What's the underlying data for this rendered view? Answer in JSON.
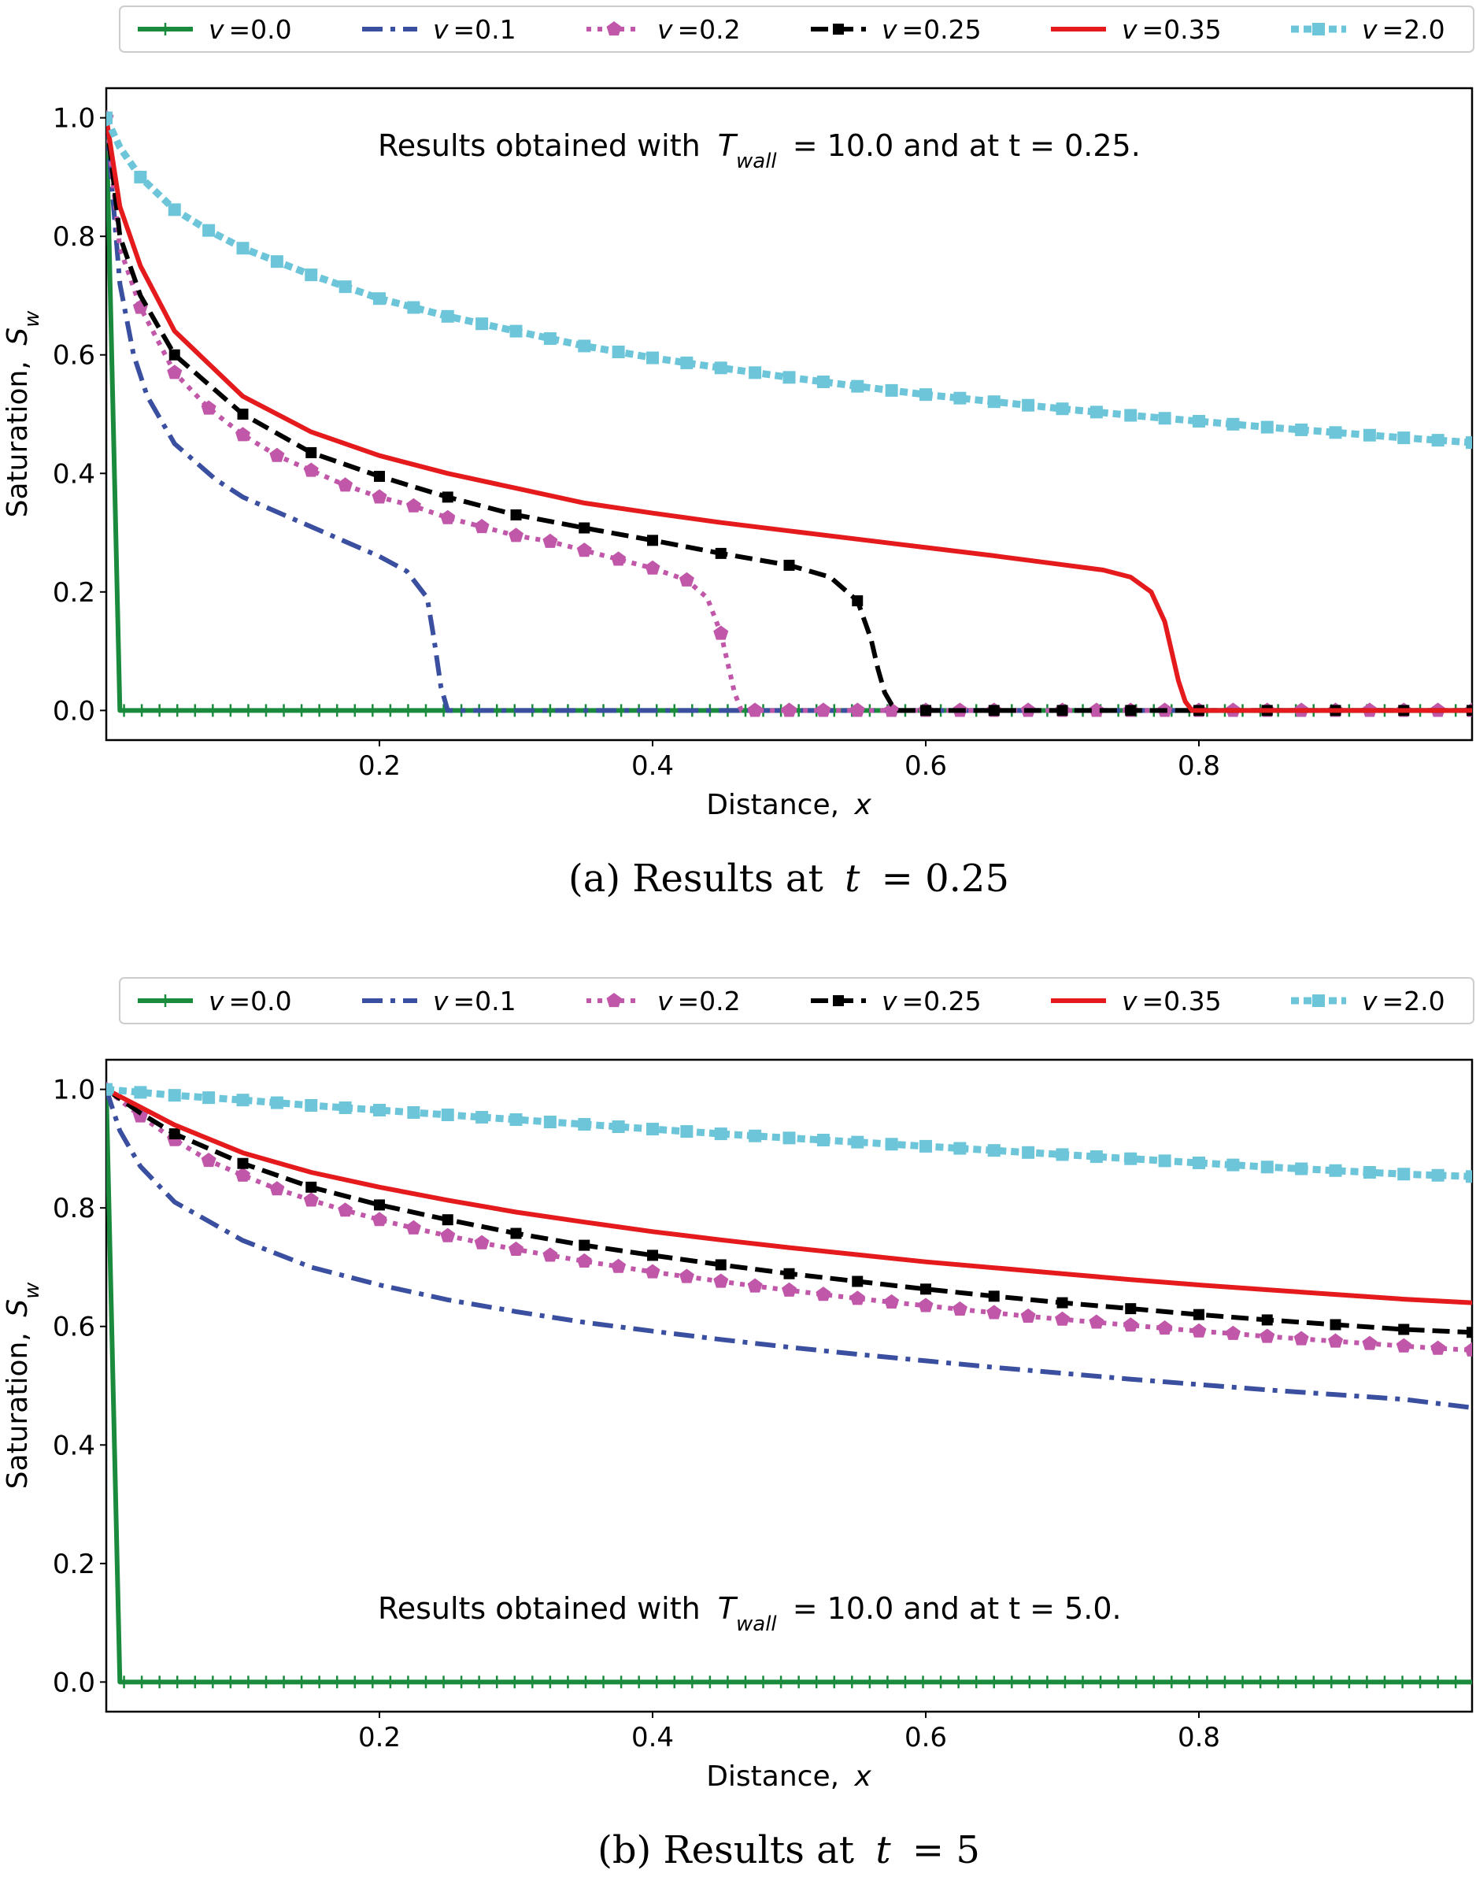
{
  "chart_data": [
    {
      "type": "line",
      "caption": "(a) Results at t = 0.25",
      "caption_prefix": "(a) Results at",
      "caption_var": "t",
      "caption_value": "= 0.25",
      "xlabel": "Distance, x",
      "xlabel_text": "Distance,",
      "xlabel_var": "x",
      "ylabel": "Saturation, Sw",
      "ylabel_text": "Saturation,",
      "ylabel_var": "S",
      "ylabel_sub": "w",
      "xlim": [
        0.0,
        1.0
      ],
      "ylim": [
        -0.05,
        1.05
      ],
      "xticks": [
        "0.2",
        "0.4",
        "0.6",
        "0.8"
      ],
      "yticks": [
        "0.0",
        "0.2",
        "0.4",
        "0.6",
        "0.8",
        "1.0"
      ],
      "annotation": "Results obtained with Twall = 10.0 and  at t = 0.25.",
      "annotation_parts": {
        "pre": "Results obtained with",
        "var": "T",
        "sub": "wall",
        "post": "= 10.0 and  at t = 0.25."
      },
      "legend_position": "top, outside, single row",
      "series": [
        {
          "name": "v = 0.0",
          "color": "#1a8a3c",
          "style": "solid-plus",
          "x": [
            0.0,
            0.01,
            0.011,
            1.0
          ],
          "y": [
            1.0,
            0.0,
            0.0,
            0.0
          ]
        },
        {
          "name": "v = 0.1",
          "color": "#3a4fa0",
          "style": "dashdot",
          "x": [
            0.0,
            0.01,
            0.02,
            0.03,
            0.05,
            0.08,
            0.1,
            0.13,
            0.15,
            0.18,
            0.2,
            0.22,
            0.235,
            0.24,
            0.245,
            0.25,
            1.0
          ],
          "y": [
            1.0,
            0.72,
            0.6,
            0.53,
            0.45,
            0.39,
            0.36,
            0.33,
            0.31,
            0.28,
            0.26,
            0.235,
            0.19,
            0.12,
            0.04,
            0.0,
            0.0
          ]
        },
        {
          "name": "v = 0.2",
          "color": "#c057a8",
          "style": "dotted-pentagon",
          "x": [
            0.0,
            0.01,
            0.025,
            0.05,
            0.075,
            0.1,
            0.125,
            0.15,
            0.175,
            0.2,
            0.225,
            0.25,
            0.275,
            0.3,
            0.325,
            0.35,
            0.375,
            0.4,
            0.425,
            0.44,
            0.45,
            0.455,
            0.46,
            0.465,
            1.0
          ],
          "y": [
            1.0,
            0.78,
            0.68,
            0.57,
            0.51,
            0.465,
            0.43,
            0.405,
            0.38,
            0.36,
            0.345,
            0.325,
            0.31,
            0.295,
            0.285,
            0.27,
            0.255,
            0.24,
            0.22,
            0.19,
            0.13,
            0.08,
            0.03,
            0.0,
            0.0
          ]
        },
        {
          "name": "v = 0.25",
          "color": "#000000",
          "style": "dashed-square",
          "x": [
            0.0,
            0.01,
            0.025,
            0.05,
            0.1,
            0.15,
            0.2,
            0.25,
            0.3,
            0.35,
            0.4,
            0.45,
            0.5,
            0.53,
            0.55,
            0.56,
            0.565,
            0.57,
            0.575,
            0.58,
            1.0
          ],
          "y": [
            1.0,
            0.8,
            0.7,
            0.6,
            0.5,
            0.435,
            0.395,
            0.36,
            0.33,
            0.308,
            0.287,
            0.265,
            0.245,
            0.225,
            0.185,
            0.12,
            0.07,
            0.03,
            0.01,
            0.0,
            0.0
          ]
        },
        {
          "name": "v = 0.35",
          "color": "#e41a1c",
          "style": "solid",
          "x": [
            0.0,
            0.01,
            0.025,
            0.05,
            0.1,
            0.15,
            0.2,
            0.25,
            0.3,
            0.35,
            0.4,
            0.45,
            0.5,
            0.55,
            0.6,
            0.65,
            0.7,
            0.73,
            0.75,
            0.765,
            0.775,
            0.78,
            0.785,
            0.79,
            0.795,
            1.0
          ],
          "y": [
            1.0,
            0.85,
            0.75,
            0.64,
            0.53,
            0.47,
            0.43,
            0.4,
            0.375,
            0.35,
            0.333,
            0.317,
            0.303,
            0.289,
            0.275,
            0.261,
            0.246,
            0.237,
            0.225,
            0.2,
            0.15,
            0.1,
            0.05,
            0.015,
            0.0,
            0.0
          ]
        },
        {
          "name": "v = 2.0",
          "color": "#6cc5d8",
          "style": "dotted-square",
          "x": [
            0.0,
            0.01,
            0.025,
            0.05,
            0.075,
            0.1,
            0.15,
            0.2,
            0.25,
            0.3,
            0.35,
            0.4,
            0.45,
            0.5,
            0.55,
            0.6,
            0.65,
            0.7,
            0.75,
            0.8,
            0.85,
            0.9,
            0.95,
            1.0
          ],
          "y": [
            1.0,
            0.95,
            0.9,
            0.845,
            0.81,
            0.78,
            0.735,
            0.695,
            0.665,
            0.64,
            0.615,
            0.595,
            0.578,
            0.562,
            0.547,
            0.533,
            0.521,
            0.509,
            0.498,
            0.488,
            0.478,
            0.469,
            0.46,
            0.452
          ]
        }
      ]
    },
    {
      "type": "line",
      "caption": "(b) Results at t = 5",
      "caption_prefix": "(b) Results at",
      "caption_var": "t",
      "caption_value": "= 5",
      "xlabel": "Distance, x",
      "xlabel_text": "Distance,",
      "xlabel_var": "x",
      "ylabel": "Saturation, Sw",
      "ylabel_text": "Saturation,",
      "ylabel_var": "S",
      "ylabel_sub": "w",
      "xlim": [
        0.0,
        1.0
      ],
      "ylim": [
        -0.05,
        1.05
      ],
      "xticks": [
        "0.2",
        "0.4",
        "0.6",
        "0.8"
      ],
      "yticks": [
        "0.0",
        "0.2",
        "0.4",
        "0.6",
        "0.8",
        "1.0"
      ],
      "annotation": "Results obtained with Twall = 10.0 and  at t = 5.0.",
      "annotation_parts": {
        "pre": "Results obtained with",
        "var": "T",
        "sub": "wall",
        "post": "= 10.0 and  at t = 5.0."
      },
      "legend_position": "top, outside, single row",
      "series": [
        {
          "name": "v = 0.0",
          "color": "#1a8a3c",
          "style": "solid-plus",
          "x": [
            0.0,
            0.01,
            0.011,
            1.0
          ],
          "y": [
            1.0,
            0.0,
            0.0,
            0.0
          ]
        },
        {
          "name": "v = 0.1",
          "color": "#3a4fa0",
          "style": "dashdot",
          "x": [
            0.0,
            0.01,
            0.025,
            0.05,
            0.1,
            0.15,
            0.2,
            0.25,
            0.3,
            0.35,
            0.4,
            0.45,
            0.5,
            0.55,
            0.6,
            0.65,
            0.7,
            0.75,
            0.8,
            0.85,
            0.9,
            0.95,
            1.0
          ],
          "y": [
            1.0,
            0.93,
            0.87,
            0.81,
            0.745,
            0.7,
            0.67,
            0.645,
            0.625,
            0.607,
            0.592,
            0.578,
            0.565,
            0.553,
            0.542,
            0.531,
            0.521,
            0.511,
            0.502,
            0.493,
            0.485,
            0.477,
            0.463
          ]
        },
        {
          "name": "v = 0.2",
          "color": "#c057a8",
          "style": "dotted-pentagon",
          "x": [
            0.0,
            0.025,
            0.05,
            0.075,
            0.1,
            0.125,
            0.15,
            0.175,
            0.2,
            0.225,
            0.25,
            0.275,
            0.3,
            0.325,
            0.35,
            0.375,
            0.4,
            0.425,
            0.45,
            0.475,
            0.5,
            0.525,
            0.55,
            0.575,
            0.6,
            0.625,
            0.65,
            0.675,
            0.7,
            0.725,
            0.75,
            0.775,
            0.8,
            0.825,
            0.85,
            0.875,
            0.9,
            0.925,
            0.95,
            0.975,
            1.0
          ],
          "y": [
            1.0,
            0.955,
            0.915,
            0.88,
            0.855,
            0.832,
            0.813,
            0.796,
            0.78,
            0.766,
            0.753,
            0.741,
            0.73,
            0.72,
            0.71,
            0.701,
            0.692,
            0.684,
            0.676,
            0.668,
            0.661,
            0.654,
            0.647,
            0.641,
            0.635,
            0.629,
            0.623,
            0.617,
            0.612,
            0.607,
            0.602,
            0.597,
            0.592,
            0.588,
            0.583,
            0.579,
            0.575,
            0.571,
            0.567,
            0.563,
            0.56
          ]
        },
        {
          "name": "v = 0.25",
          "color": "#000000",
          "style": "dashed-square",
          "x": [
            0.0,
            0.025,
            0.05,
            0.1,
            0.15,
            0.2,
            0.25,
            0.3,
            0.35,
            0.4,
            0.45,
            0.5,
            0.55,
            0.6,
            0.65,
            0.7,
            0.75,
            0.8,
            0.85,
            0.9,
            0.95,
            1.0
          ],
          "y": [
            1.0,
            0.96,
            0.925,
            0.875,
            0.835,
            0.805,
            0.78,
            0.757,
            0.737,
            0.72,
            0.704,
            0.689,
            0.676,
            0.663,
            0.651,
            0.64,
            0.63,
            0.62,
            0.611,
            0.603,
            0.595,
            0.59
          ]
        },
        {
          "name": "v = 0.35",
          "color": "#e41a1c",
          "style": "solid",
          "x": [
            0.0,
            0.025,
            0.05,
            0.1,
            0.15,
            0.2,
            0.25,
            0.3,
            0.35,
            0.4,
            0.45,
            0.5,
            0.55,
            0.6,
            0.65,
            0.7,
            0.75,
            0.8,
            0.85,
            0.9,
            0.95,
            1.0
          ],
          "y": [
            1.0,
            0.97,
            0.94,
            0.893,
            0.86,
            0.835,
            0.813,
            0.793,
            0.776,
            0.76,
            0.746,
            0.733,
            0.721,
            0.709,
            0.699,
            0.689,
            0.679,
            0.67,
            0.662,
            0.654,
            0.646,
            0.64
          ]
        },
        {
          "name": "v = 2.0",
          "color": "#6cc5d8",
          "style": "dotted-square",
          "x": [
            0.0,
            0.05,
            0.1,
            0.15,
            0.2,
            0.25,
            0.3,
            0.35,
            0.4,
            0.45,
            0.5,
            0.55,
            0.6,
            0.65,
            0.7,
            0.75,
            0.8,
            0.85,
            0.9,
            0.95,
            1.0
          ],
          "y": [
            1.0,
            0.99,
            0.982,
            0.973,
            0.965,
            0.957,
            0.949,
            0.941,
            0.933,
            0.925,
            0.918,
            0.911,
            0.904,
            0.897,
            0.89,
            0.883,
            0.876,
            0.869,
            0.863,
            0.857,
            0.853
          ]
        }
      ]
    }
  ]
}
